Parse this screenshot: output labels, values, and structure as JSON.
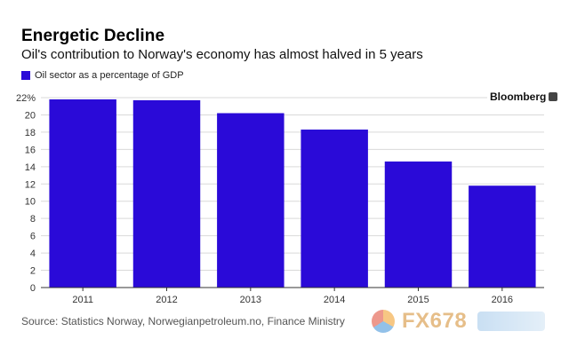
{
  "chart_data": {
    "type": "bar",
    "title": "Energetic Decline",
    "subtitle": "Oil's contribution to Norway's economy has almost halved in 5 years",
    "series": [
      {
        "name": "Oil sector as a percentage of GDP",
        "color": "#2a0ad8",
        "values": [
          21.8,
          21.7,
          20.2,
          18.3,
          14.6,
          11.8
        ]
      }
    ],
    "categories": [
      "2011",
      "2012",
      "2013",
      "2014",
      "2015",
      "2016"
    ],
    "ylim": [
      0,
      22
    ],
    "yticks": [
      0,
      2,
      4,
      6,
      8,
      10,
      12,
      14,
      16,
      18,
      20,
      22
    ],
    "ytick_labels": [
      "0",
      "2",
      "4",
      "6",
      "8",
      "10",
      "12",
      "14",
      "16",
      "18",
      "20",
      "22%"
    ],
    "xlabel": "",
    "ylabel": "",
    "grid": true,
    "legend_position": "top-left",
    "source": "Source: Statistics Norway, Norwegianpetroleum.no, Finance Ministry",
    "brand": "Bloomberg",
    "watermark": "FX678"
  }
}
